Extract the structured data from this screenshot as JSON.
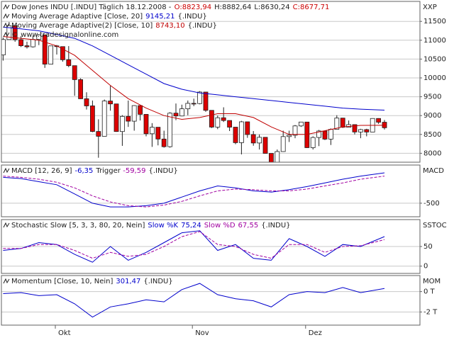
{
  "chart_data": [
    {
      "type": "candlestick",
      "title": "Dow Jones INDU [.INDU] Täglich 18.12.2008 -",
      "last_labels": [
        "O:8823,94",
        "H:8882,64",
        "L:8630,24",
        "C:8677,71"
      ],
      "last_label_colors": [
        "#cc0000",
        "#202020",
        "#202020",
        "#cc0000"
      ],
      "copyright": "© www.tradesignalonline.com",
      "axis_label": "XXP",
      "categories": [
        null,
        null,
        null,
        null,
        null,
        null,
        null,
        null,
        null,
        "Okt",
        null,
        null,
        null,
        null,
        null,
        null,
        null,
        null,
        null,
        null,
        null,
        null,
        null,
        null,
        null,
        null,
        null,
        null,
        null,
        null,
        null,
        null,
        "Nov",
        null,
        null,
        null,
        null,
        null,
        null,
        null,
        null,
        null,
        null,
        null,
        null,
        null,
        null,
        null,
        null,
        null,
        null,
        "Dez",
        null,
        null,
        null,
        null,
        null,
        null,
        null,
        null,
        null,
        null,
        null,
        null,
        null
      ],
      "open": [
        10609,
        11019,
        11388,
        11015,
        10854,
        10825,
        11022,
        11143,
        10365,
        10850,
        10831,
        10482,
        10325,
        9955,
        9447,
        9258,
        8579,
        8451,
        9387,
        9310,
        8577,
        8979,
        8852,
        9265,
        9033,
        8519,
        8691,
        8378,
        8175,
        9065,
        8990,
        9180,
        9325,
        9319,
        9625,
        9139,
        8695,
        8943,
        8870,
        8693,
        8282,
        8835,
        8497,
        8273,
        8424,
        7997,
        7552,
        8046,
        8443,
        8479,
        8726,
        8829,
        8149,
        8419,
        8591,
        8376,
        8635,
        8934,
        8691,
        8761,
        8565,
        8629,
        8564,
        8924,
        8823.94
      ],
      "high": [
        11070,
        11483,
        11388,
        11106,
        10960,
        11124,
        11164,
        11143,
        10851,
        10875,
        10831,
        10844,
        10325,
        9990,
        9620,
        9400,
        8901,
        9427,
        9794,
        9310,
        9012,
        9400,
        9275,
        9265,
        9033,
        8800,
        8691,
        8600,
        9090,
        9320,
        9290,
        9400,
        9450,
        9650,
        9625,
        9139,
        9000,
        9220,
        8870,
        8693,
        8860,
        8835,
        8590,
        8500,
        8424,
        7997,
        8100,
        8600,
        8600,
        8750,
        8830,
        8829,
        8450,
        8620,
        8600,
        8660,
        9010,
        8940,
        8870,
        8761,
        8650,
        8650,
        8930,
        8930,
        8882.64
      ],
      "low": [
        10459,
        11019,
        10960,
        10820,
        10780,
        10805,
        10870,
        10266,
        10365,
        10620,
        10430,
        10285,
        9525,
        9440,
        9160,
        8560,
        7882,
        8451,
        9130,
        8570,
        8197,
        8700,
        8600,
        8870,
        8450,
        8170,
        8210,
        8150,
        8150,
        8880,
        8980,
        9010,
        9250,
        9300,
        9100,
        8670,
        8640,
        8830,
        8590,
        8240,
        7970,
        8410,
        8200,
        8100,
        7990,
        7510,
        7450,
        8040,
        8300,
        8400,
        8700,
        8140,
        8100,
        8190,
        8350,
        8220,
        8630,
        8670,
        8690,
        8500,
        8400,
        8450,
        8560,
        8780,
        8630.24
      ],
      "close": [
        11019,
        11388,
        11015,
        10854,
        10825,
        11022,
        11143,
        10365,
        10850,
        10831,
        10482,
        10325,
        9955,
        9447,
        9258,
        8579,
        8451,
        9387,
        9310,
        8577,
        8979,
        8852,
        9265,
        9033,
        8519,
        8691,
        8378,
        8175,
        9065,
        8990,
        9180,
        9325,
        9319,
        9625,
        9139,
        8695,
        8943,
        8870,
        8693,
        8282,
        8835,
        8497,
        8273,
        8424,
        7997,
        7552,
        8046,
        8443,
        8479,
        8726,
        8829,
        8149,
        8419,
        8591,
        8376,
        8635,
        8934,
        8691,
        8761,
        8565,
        8629,
        8564,
        8924,
        8824,
        8677.71
      ],
      "up_color": "#ffffff",
      "down_color": "#dd0000",
      "x": [
        0,
        3,
        6,
        9,
        12,
        15,
        18,
        21,
        24,
        27,
        30,
        33,
        36,
        39,
        42,
        45,
        48,
        51,
        54,
        57,
        60,
        64
      ],
      "series": [
        {
          "name": "Moving Average Adaptive [Close, 20]",
          "value_label": "9145,21",
          "suffix": "{.INDU}",
          "color": "#0000cc",
          "values": [
            11350,
            11300,
            11250,
            11150,
            11050,
            10850,
            10600,
            10350,
            10100,
            9850,
            9700,
            9600,
            9550,
            9500,
            9450,
            9400,
            9350,
            9300,
            9250,
            9200,
            9170,
            9145.21
          ]
        },
        {
          "name": "Moving Average Adaptive(2) [Close, 10]",
          "value_label": "8743,10",
          "suffix": "{.INDU}",
          "color": "#c00000",
          "values": [
            11100,
            11050,
            11000,
            10850,
            10600,
            10200,
            9800,
            9450,
            9200,
            9000,
            8900,
            8950,
            9050,
            9050,
            8950,
            8700,
            8500,
            8500,
            8600,
            8700,
            8740,
            8743.1
          ]
        }
      ],
      "ylim": [
        7763,
        12030
      ],
      "yticks": [
        8000,
        8500,
        9000,
        9500,
        10000,
        10500,
        11000,
        11500
      ],
      "grid": true
    },
    {
      "type": "line",
      "axis_label": "MACD",
      "suffix": "{.INDU}",
      "x": [
        0,
        3,
        6,
        9,
        12,
        15,
        18,
        21,
        24,
        27,
        30,
        33,
        36,
        39,
        42,
        45,
        48,
        51,
        54,
        57,
        60,
        64
      ],
      "series": [
        {
          "name": "MACD [12, 26, 9]",
          "value_label": "-6,35",
          "color": "#0000cc",
          "dash": false,
          "values": [
            -80,
            -100,
            -150,
            -200,
            -350,
            -500,
            -560,
            -560,
            -540,
            -500,
            -400,
            -300,
            -220,
            -250,
            -300,
            -320,
            -280,
            -230,
            -170,
            -110,
            -60,
            -6.35
          ]
        },
        {
          "name": "Trigger",
          "value_label": "-59,59",
          "color": "#a000a0",
          "dash": true,
          "values": [
            -60,
            -80,
            -110,
            -160,
            -250,
            -380,
            -480,
            -540,
            -560,
            -530,
            -470,
            -380,
            -300,
            -270,
            -280,
            -300,
            -300,
            -270,
            -220,
            -170,
            -110,
            -59.59
          ]
        }
      ],
      "ylim": [
        -720,
        120
      ],
      "yticks": [
        -500
      ],
      "grid": true
    },
    {
      "type": "line",
      "title": "Stochastic Slow [5, 3, 3, 80, 20, Nein]",
      "axis_label": "SSTOC",
      "suffix": "{.INDU}",
      "x": [
        0,
        3,
        6,
        9,
        12,
        15,
        18,
        21,
        24,
        27,
        30,
        33,
        36,
        39,
        42,
        45,
        48,
        51,
        54,
        57,
        60,
        64
      ],
      "series": [
        {
          "name": "Slow %K",
          "value_label": "75,24",
          "color": "#0000cc",
          "dash": false,
          "values": [
            40,
            45,
            60,
            55,
            30,
            10,
            50,
            15,
            35,
            60,
            85,
            90,
            40,
            55,
            20,
            15,
            70,
            50,
            25,
            55,
            50,
            75.24
          ]
        },
        {
          "name": "Slow %D",
          "value_label": "67,55",
          "color": "#a000a0",
          "dash": true,
          "values": [
            45,
            45,
            55,
            55,
            40,
            20,
            35,
            25,
            30,
            50,
            75,
            88,
            55,
            50,
            30,
            20,
            55,
            55,
            35,
            50,
            52,
            67.55
          ]
        }
      ],
      "ylim": [
        -18.5,
        118.5
      ],
      "yticks": [
        0,
        50
      ],
      "grid": true
    },
    {
      "type": "line",
      "axis_label": "MOM",
      "suffix": "{.INDU}",
      "x": [
        0,
        3,
        6,
        9,
        12,
        15,
        18,
        21,
        24,
        27,
        30,
        33,
        36,
        39,
        42,
        45,
        48,
        51,
        54,
        57,
        60,
        64
      ],
      "series": [
        {
          "name": "Momentum [Close, 10, Nein]",
          "value_label": "301,47",
          "color": "#0000cc",
          "dash": false,
          "values": [
            -200,
            -100,
            -400,
            -300,
            -1200,
            -2500,
            -1500,
            -1200,
            -800,
            -1000,
            200,
            800,
            -300,
            -700,
            -900,
            -1500,
            -300,
            0,
            -100,
            400,
            -100,
            301.47
          ]
        }
      ],
      "ylim": [
        -3286,
        1571
      ],
      "yticks": [
        {
          "value": 0,
          "label": "0 T"
        },
        {
          "value": -2000,
          "label": "-2 T"
        }
      ],
      "grid": true
    }
  ]
}
